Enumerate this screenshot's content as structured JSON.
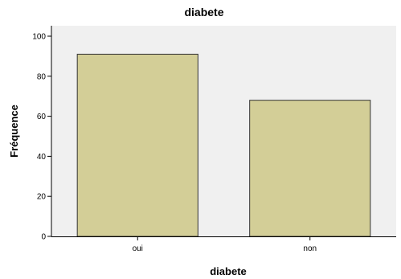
{
  "chart_data": {
    "type": "bar",
    "title": "diabete",
    "xlabel": "diabete",
    "ylabel": "Fréquence",
    "categories": [
      "oui",
      "non"
    ],
    "values": [
      91,
      68
    ],
    "ylim": [
      0,
      100
    ],
    "yticks": [
      0,
      20,
      40,
      60,
      80,
      100
    ],
    "grid": false,
    "legend": "none",
    "colors": {
      "bar_fill": "#D3CE97",
      "bar_stroke": "#333333",
      "plot_background": "#F0F0F0",
      "axis": "#000000"
    }
  }
}
